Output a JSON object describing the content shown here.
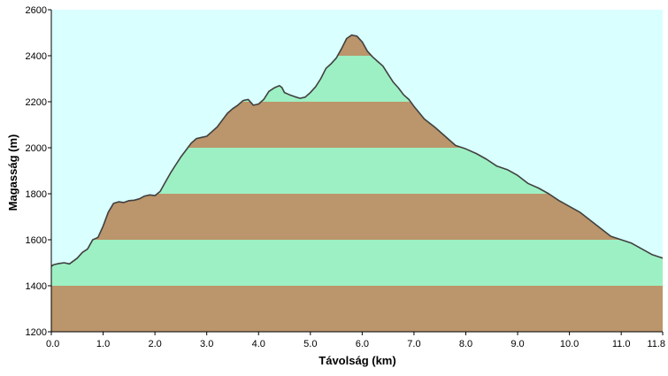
{
  "chart_data": {
    "type": "area",
    "title": "",
    "xlabel": "Távolság  (km)",
    "ylabel": "Magasság (m)",
    "xlim": [
      0,
      11.8
    ],
    "ylim": [
      1200,
      2600
    ],
    "x_ticks": [
      0,
      1,
      2,
      3,
      4,
      5,
      6,
      7,
      8,
      9,
      10,
      11,
      11.8
    ],
    "x_tick_labels": [
      "0.0",
      "1.0",
      "2.0",
      "3.0",
      "4.0",
      "5.0",
      "6.0",
      "7.0",
      "8.0",
      "9.0",
      "10.0",
      "11.0",
      "11.8"
    ],
    "y_ticks": [
      1200,
      1400,
      1600,
      1800,
      2000,
      2200,
      2400,
      2600
    ],
    "y_tick_labels": [
      "1200",
      "1400",
      "1600",
      "1800",
      "2000",
      "2200",
      "2400",
      "2600"
    ],
    "grid": false,
    "legend": false,
    "band_step": 200,
    "colors": {
      "sky": "#d9ffff",
      "band_brown": "#bb956b",
      "band_green": "#9df0c3",
      "profile_line": "#404040",
      "axis": "#000000"
    },
    "series": [
      {
        "x": [
          0,
          0.05,
          0.15,
          0.25,
          0.35,
          0.5,
          0.6,
          0.7,
          0.75,
          0.8,
          0.85,
          0.9,
          1.0,
          1.1,
          1.2,
          1.3,
          1.4,
          1.5,
          1.6,
          1.7,
          1.8,
          1.9,
          2.0,
          2.1,
          2.2,
          2.3,
          2.4,
          2.5,
          2.6,
          2.7,
          2.8,
          2.9,
          3.0,
          3.1,
          3.2,
          3.3,
          3.4,
          3.5,
          3.6,
          3.7,
          3.8,
          3.9,
          4.0,
          4.1,
          4.2,
          4.3,
          4.4,
          4.45,
          4.5,
          4.6,
          4.7,
          4.8,
          4.9,
          5.0,
          5.1,
          5.2,
          5.3,
          5.4,
          5.5,
          5.6,
          5.7,
          5.8,
          5.9,
          6.0,
          6.1,
          6.2,
          6.3,
          6.4,
          6.5,
          6.6,
          6.7,
          6.8,
          6.9,
          7.0,
          7.2,
          7.4,
          7.6,
          7.8,
          8.0,
          8.2,
          8.4,
          8.6,
          8.8,
          9.0,
          9.2,
          9.4,
          9.6,
          9.8,
          10.0,
          10.2,
          10.4,
          10.6,
          10.8,
          11.0,
          11.2,
          11.4,
          11.6,
          11.8
        ],
        "y": [
          1485,
          1492,
          1497,
          1500,
          1495,
          1520,
          1545,
          1560,
          1580,
          1600,
          1605,
          1610,
          1660,
          1720,
          1758,
          1765,
          1762,
          1770,
          1772,
          1778,
          1790,
          1795,
          1792,
          1810,
          1850,
          1890,
          1925,
          1960,
          1990,
          2020,
          2040,
          2045,
          2050,
          2070,
          2090,
          2120,
          2150,
          2170,
          2185,
          2205,
          2210,
          2185,
          2190,
          2210,
          2245,
          2260,
          2270,
          2262,
          2240,
          2230,
          2222,
          2215,
          2220,
          2240,
          2265,
          2300,
          2345,
          2365,
          2390,
          2430,
          2475,
          2490,
          2485,
          2460,
          2420,
          2395,
          2375,
          2355,
          2320,
          2285,
          2260,
          2230,
          2210,
          2180,
          2125,
          2090,
          2050,
          2010,
          1995,
          1975,
          1950,
          1920,
          1905,
          1880,
          1845,
          1825,
          1800,
          1770,
          1745,
          1720,
          1685,
          1650,
          1615,
          1600,
          1585,
          1560,
          1535,
          1520
        ]
      }
    ]
  }
}
